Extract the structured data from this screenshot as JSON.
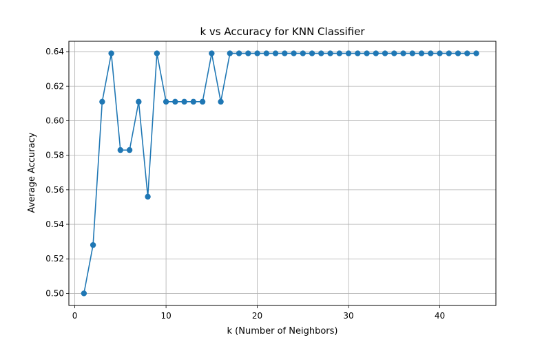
{
  "chart_data": {
    "type": "line",
    "title": "k vs Accuracy for KNN Classifier",
    "xlabel": "k (Number of Neighbors)",
    "ylabel": "Average Accuracy",
    "xlim": [
      -0.65,
      46.15
    ],
    "ylim": [
      0.493,
      0.646
    ],
    "xticks": [
      0,
      10,
      20,
      30,
      40
    ],
    "yticks": [
      0.5,
      0.52,
      0.54,
      0.56,
      0.58,
      0.6,
      0.62,
      0.64
    ],
    "xtick_labels": [
      "0",
      "10",
      "20",
      "30",
      "40"
    ],
    "ytick_labels": [
      "0.50",
      "0.52",
      "0.54",
      "0.56",
      "0.58",
      "0.60",
      "0.62",
      "0.64"
    ],
    "grid": true,
    "marker": "circle",
    "series": [
      {
        "color": "#1f77b4",
        "x": [
          1,
          2,
          3,
          4,
          5,
          6,
          7,
          8,
          9,
          10,
          11,
          12,
          13,
          14,
          15,
          16,
          17,
          18,
          19,
          20,
          21,
          22,
          23,
          24,
          25,
          26,
          27,
          28,
          29,
          30,
          31,
          32,
          33,
          34,
          35,
          36,
          37,
          38,
          39,
          40,
          41,
          42,
          43,
          44
        ],
        "y": [
          0.5,
          0.528,
          0.611,
          0.639,
          0.583,
          0.583,
          0.611,
          0.556,
          0.639,
          0.611,
          0.611,
          0.611,
          0.611,
          0.611,
          0.639,
          0.611,
          0.639,
          0.639,
          0.639,
          0.639,
          0.639,
          0.639,
          0.639,
          0.639,
          0.639,
          0.639,
          0.639,
          0.639,
          0.639,
          0.639,
          0.639,
          0.639,
          0.639,
          0.639,
          0.639,
          0.639,
          0.639,
          0.639,
          0.639,
          0.639,
          0.639,
          0.639,
          0.639,
          0.639
        ]
      }
    ]
  }
}
